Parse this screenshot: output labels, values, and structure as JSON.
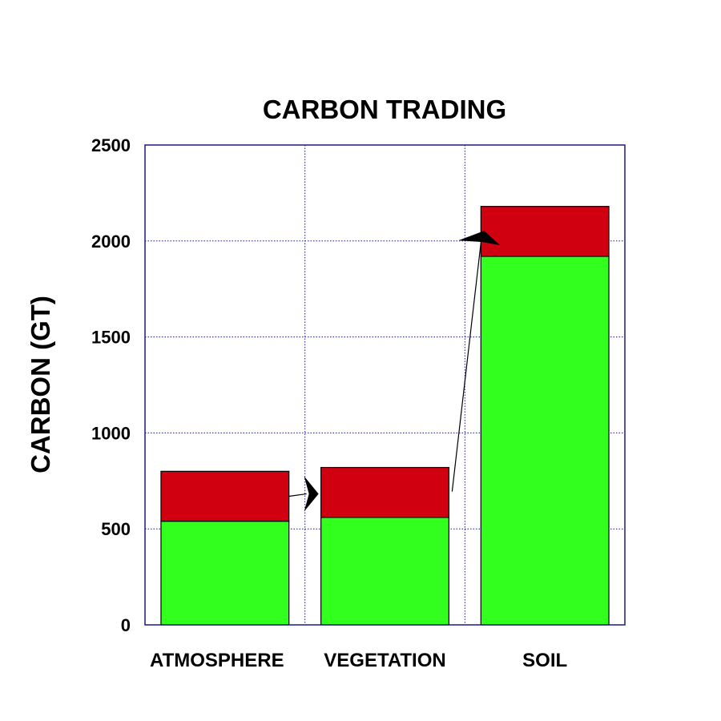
{
  "chart_data": {
    "type": "bar",
    "stacked": true,
    "title": "CARBON TRADING",
    "ylabel": "CARBON (GT)",
    "xlabel": "",
    "ylim": [
      0,
      2500
    ],
    "yticks": [
      "0",
      "500",
      "1000",
      "1500",
      "2000",
      "2500"
    ],
    "grid": true,
    "categories": [
      "ATMOSPHERE",
      "VEGETATION",
      "SOIL"
    ],
    "series": [
      {
        "values": [
          540,
          560,
          1920
        ],
        "color": "#33ff1f"
      },
      {
        "values": [
          260,
          260,
          260
        ],
        "color": "#d00010"
      }
    ],
    "annotations": [
      {
        "type": "arrow",
        "from": "ATMOSPHERE",
        "to": "VEGETATION"
      },
      {
        "type": "arrow",
        "from": "VEGETATION",
        "to": "SOIL"
      }
    ],
    "frame_color": "#1a1a80"
  }
}
